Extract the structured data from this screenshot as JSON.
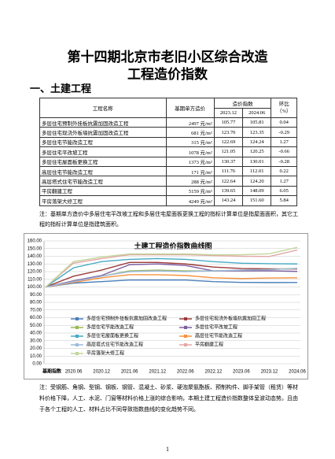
{
  "header": {
    "title_line1": "第十四期北京市老旧小区综合改造",
    "title_line2": "工程造价指数"
  },
  "section": "一、土建工程",
  "table": {
    "head": {
      "name": "工程名称",
      "base": "基期单方造价",
      "index": "造价指数",
      "p1": "2023.12",
      "p2": "2024.06",
      "ratio": "环比",
      "ratio_unit": "（%）"
    },
    "rows": [
      [
        "多层住宅预制外挂板抗震加固改造工程",
        "2497 元/m²",
        "105.77",
        "105.81",
        "0.04"
      ],
      [
        "多层住宅现浇外板墙抗震加固改造工程",
        "681 元/m²",
        "123.70",
        "123.35",
        "-0.29"
      ],
      [
        "多层住宅节能改造工程",
        "315 元/m²",
        "122.69",
        "124.24",
        "1.27"
      ],
      [
        "多层住宅平改坡工程",
        "1078 元/m²",
        "121.05",
        "120.25",
        "-0.66"
      ],
      [
        "多层住宅屋面板更换工程",
        "1373 元/m²",
        "130.37",
        "130.01",
        "-0.28"
      ],
      [
        "高层住宅节能改造工程",
        "171 元/m²",
        "111.76",
        "112.01",
        "0.22"
      ],
      [
        "高层塔式住宅节能改造工程",
        "288 元/m²",
        "122.64",
        "124.20",
        "1.27"
      ],
      [
        "平房翻建工程",
        "5159 元/m²",
        "139.65",
        "148.09",
        "6.05"
      ],
      [
        "平房落架大修工程",
        "4249 元/m²",
        "143.24",
        "151.60",
        "5.84"
      ]
    ]
  },
  "note1": "注：基期单方造价中多层住宅平改坡工程和多层住宅屋面板更换工程的指标计算单位是指屋面面积，其它工程的指标计算单位是指建筑面积。",
  "chart_data": {
    "type": "line",
    "title": "土建工程造价指数曲线图",
    "categories": [
      "基期指数",
      "2020.06",
      "2020.12",
      "2021.06",
      "2021.12",
      "2022.06",
      "2022.12",
      "2023.06",
      "2023.12",
      "2024.06"
    ],
    "ylim": [
      0,
      160
    ],
    "yticks": [
      {
        "value": 0,
        "label": "0.00"
      },
      {
        "value": 10,
        "label": "10.00"
      },
      {
        "value": 20,
        "label": "20.00"
      },
      {
        "value": 30,
        "label": "30.00"
      },
      {
        "value": 40,
        "label": "40.00"
      },
      {
        "value": 50,
        "label": "50.00"
      },
      {
        "value": 60,
        "label": "60.00"
      },
      {
        "value": 70,
        "label": "70.00"
      },
      {
        "value": 80,
        "label": "80.00"
      },
      {
        "value": 90,
        "label": "90.00"
      },
      {
        "value": 100,
        "label": "100.00"
      },
      {
        "value": 110,
        "label": "110.00"
      },
      {
        "value": 120,
        "label": "120.00"
      },
      {
        "value": 130,
        "label": "130.00"
      },
      {
        "value": 140,
        "label": "140.00"
      },
      {
        "value": 150,
        "label": "150.00"
      },
      {
        "value": 160,
        "label": "160.00"
      }
    ],
    "grid": true,
    "series": [
      {
        "name": "多层住宅预制外挂板抗震加固改造工程",
        "color": "#4a7ebb",
        "values": [
          100,
          105,
          107,
          109,
          109,
          109,
          107,
          106,
          105.77,
          105.81
        ]
      },
      {
        "name": "多层住宅现浇外板墙抗震加固工程",
        "color": "#9b3b3a",
        "values": [
          100,
          114,
          122,
          132,
          132,
          130,
          126,
          124,
          123.7,
          123.35
        ]
      },
      {
        "name": "多层住宅节能改造工程",
        "color": "#98b954",
        "values": [
          100,
          108,
          114,
          121,
          122,
          121,
          121,
          122,
          122.69,
          124.24
        ]
      },
      {
        "name": "多层住宅平改坡工程",
        "color": "#7d60a0",
        "values": [
          100,
          108,
          115,
          129,
          130,
          128,
          121,
          121,
          121.05,
          120.25
        ]
      },
      {
        "name": "多层住宅屋面板更换工程",
        "color": "#46aac5",
        "values": [
          100,
          125,
          133,
          136,
          137,
          136,
          133,
          131,
          130.37,
          130.01
        ]
      },
      {
        "name": "高层住宅节能改造工程",
        "color": "#f6923d",
        "values": [
          100,
          106,
          112,
          116,
          116,
          115,
          112,
          111,
          111.76,
          112.01
        ]
      },
      {
        "name": "高层塔式住宅节能改造工程",
        "color": "#9db9dc",
        "values": [
          100,
          107,
          114,
          120,
          121,
          120,
          121,
          122,
          122.64,
          124.2
        ]
      },
      {
        "name": "平房翻建工程",
        "color": "#e2a7a6",
        "values": [
          100,
          131,
          137,
          142,
          142,
          142,
          141,
          140,
          139.65,
          148.09
        ]
      },
      {
        "name": "平房落架大修工程",
        "color": "#c3d69b",
        "values": [
          100,
          133,
          139,
          143,
          143,
          143,
          142,
          142,
          143.24,
          151.6
        ]
      }
    ]
  },
  "note2": "注：受钢筋、角钢、型钢、钢板、钢管、混凝土、砂浆、硬泡聚氨酯板、预制构件、脚手架管（租赁）等材料价格下降，人工、水泥、门窗等材料价格上涨的综合影响，本期土建工程造价指数整体呈波动态势。且由于各个工程的人工、材料占比不同导致指数曲线的变化趋势不同。",
  "page_number": "1"
}
